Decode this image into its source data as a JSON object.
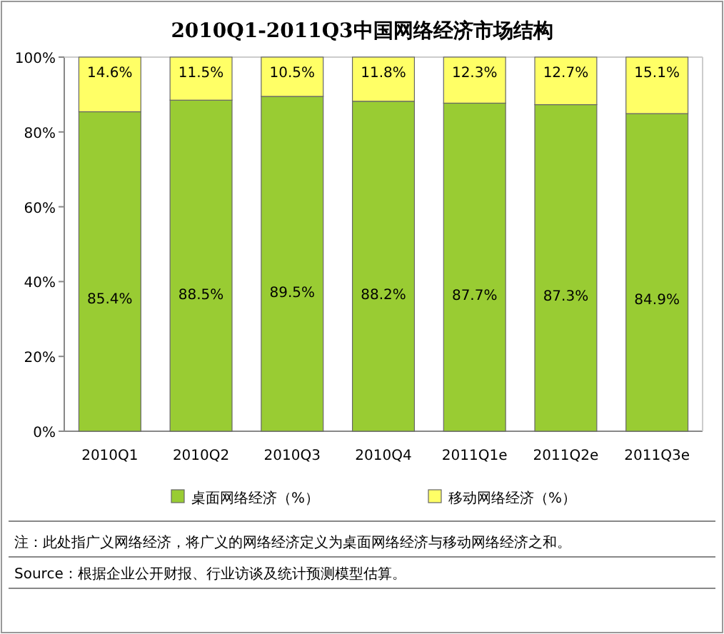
{
  "chart_data": {
    "type": "bar",
    "stacked": true,
    "title": "2010Q1-2011Q3中国网络经济市场结构",
    "categories": [
      "2010Q1",
      "2010Q2",
      "2010Q3",
      "2010Q4",
      "2011Q1e",
      "2011Q2e",
      "2011Q3e"
    ],
    "series": [
      {
        "name": "桌面网络经济（%）",
        "color": "#99cc33",
        "values": [
          85.4,
          88.5,
          89.5,
          88.2,
          87.7,
          87.3,
          84.9
        ],
        "value_labels": [
          "85.4%",
          "88.5%",
          "89.5%",
          "88.2%",
          "87.7%",
          "87.3%",
          "84.9%"
        ]
      },
      {
        "name": "移动网络经济（%）",
        "color": "#ffff66",
        "values": [
          14.6,
          11.5,
          10.5,
          11.8,
          12.3,
          12.7,
          15.1
        ],
        "value_labels": [
          "14.6%",
          "11.5%",
          "10.5%",
          "11.8%",
          "12.3%",
          "12.7%",
          "15.1%"
        ]
      }
    ],
    "ylim": [
      0,
      100
    ],
    "yticks": [
      {
        "value": 0,
        "label": "0%"
      },
      {
        "value": 20,
        "label": "20%"
      },
      {
        "value": 40,
        "label": "40%"
      },
      {
        "value": 60,
        "label": "60%"
      },
      {
        "value": 80,
        "label": "80%"
      },
      {
        "value": 100,
        "label": "100%"
      }
    ],
    "grid": false,
    "legend": "bottom",
    "annotations": [
      "注：此处指广义网络经济，将广义的网络经济定义为桌面网络经济与移动网络经济之和。",
      "Source：根据企业公开财报、行业访谈及统计预测模型估算。"
    ]
  }
}
